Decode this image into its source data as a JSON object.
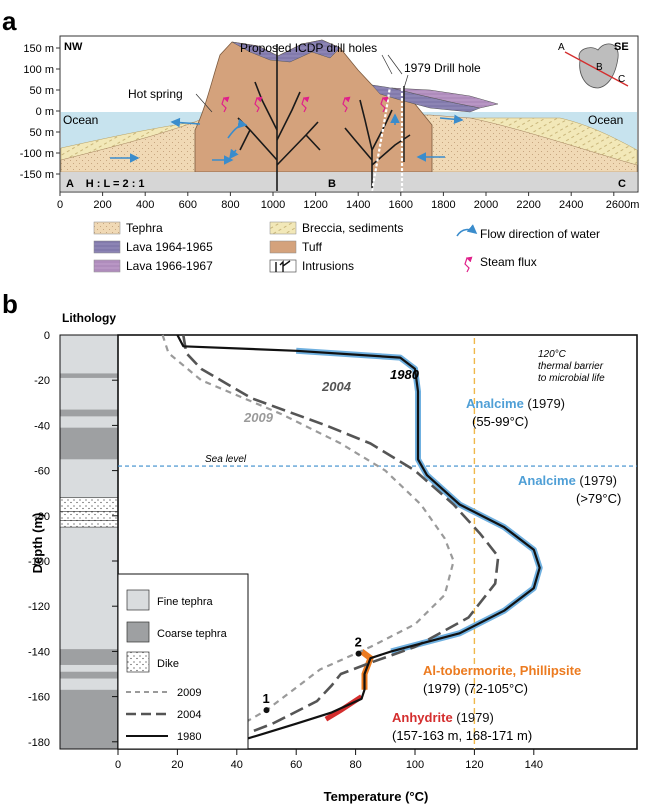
{
  "panel_a": {
    "letter": "a",
    "nw": "NW",
    "se": "SE",
    "proposed_label": "Proposed ICDP drill holes",
    "drill1979_label": "1979 Drill hole",
    "hot_spring_label": "Hot spring",
    "ocean_left": "Ocean",
    "ocean_right": "Ocean",
    "hl_label": "A    H : L = 2 : 1",
    "point_b": "B",
    "point_c": "C",
    "inset": {
      "a": "A",
      "b": "B",
      "c": "C"
    },
    "y_ticks": [
      "150 m",
      "100 m",
      "50 m",
      "0 m",
      "50 m",
      "-100 m",
      "-150 m"
    ],
    "x_ticks": [
      "0",
      "200",
      "400",
      "600",
      "800",
      "1000",
      "1200",
      "1400",
      "1600",
      "1800",
      "2000",
      "2200",
      "2400",
      "2600m"
    ],
    "legend": [
      {
        "label": "Tephra",
        "color": "#f0d9b5"
      },
      {
        "label": "Lava 1964-1965",
        "color": "#8c84b4"
      },
      {
        "label": "Lava 1966-1967",
        "color": "#b896c4"
      },
      {
        "label": "Breccia, sediments",
        "color": "#f2e8b8"
      },
      {
        "label": "Tuff",
        "color": "#d4a27c"
      },
      {
        "label": "Intrusions",
        "color": "#1a1a1a"
      },
      {
        "label": "Flow direction of water",
        "color": "#3a8ccc"
      },
      {
        "label": "Steam flux",
        "color": "#e0208a"
      }
    ]
  },
  "panel_b": {
    "letter": "b",
    "lithology_label": "Lithology",
    "ylabel": "Depth (m)",
    "xlabel": "Temperature (°C)",
    "y_ticks": [
      "0",
      "-20",
      "-40",
      "-60",
      "-80",
      "-100",
      "-120",
      "-140",
      "-160",
      "-180"
    ],
    "x_ticks": [
      "0",
      "20",
      "40",
      "60",
      "80",
      "100",
      "120",
      "140"
    ],
    "sea_level": "Sea level",
    "thermal_barrier": "120°C\nthermal barrier\nto microbial life",
    "curve_labels": {
      "c1980": "1980",
      "c2004": "2004",
      "c2009": "2009"
    },
    "point_1": "1",
    "point_2": "2",
    "minerals": [
      {
        "name": "Analcime",
        "suffix": " (1979)",
        "range": "(55-99°C)"
      },
      {
        "name": "Analcime",
        "suffix": " (1979)",
        "range": "(>79°C)"
      },
      {
        "name": "Al-tobermorite, Phillipsite",
        "suffix": "",
        "range": "(1979) (72-105°C)"
      },
      {
        "name": "Anhydrite",
        "suffix": " (1979)",
        "range": "(157-163 m, 168-171 m)"
      }
    ],
    "legend": {
      "fine": "Fine tephra",
      "coarse": "Coarse tephra",
      "dike": "Dike",
      "l2009": "2009",
      "l2004": "2004",
      "l1980": "1980"
    }
  },
  "chart_data": {
    "type": "line",
    "xlabel": "Temperature (°C)",
    "ylabel": "Depth (m)",
    "xlim": [
      0,
      148
    ],
    "ylim": [
      -183,
      0
    ],
    "series": [
      {
        "name": "1980",
        "style": "solid",
        "color": "#111111",
        "points": [
          [
            20,
            0
          ],
          [
            22,
            -5
          ],
          [
            60,
            -7
          ],
          [
            95,
            -10
          ],
          [
            100,
            -15
          ],
          [
            101,
            -25
          ],
          [
            101,
            -40
          ],
          [
            101,
            -55
          ],
          [
            104,
            -62
          ],
          [
            115,
            -75
          ],
          [
            130,
            -85
          ],
          [
            140,
            -95
          ],
          [
            142,
            -103
          ],
          [
            140,
            -112
          ],
          [
            130,
            -122
          ],
          [
            115,
            -132
          ],
          [
            92,
            -140
          ],
          [
            85,
            -143
          ],
          [
            83,
            -150
          ],
          [
            83,
            -157
          ],
          [
            82,
            -161
          ],
          [
            72,
            -167
          ],
          [
            60,
            -172
          ],
          [
            50,
            -176
          ],
          [
            40,
            -180
          ]
        ]
      },
      {
        "name": "2004",
        "style": "dashed",
        "color": "#555555",
        "points": [
          [
            22,
            0
          ],
          [
            23,
            -8
          ],
          [
            28,
            -15
          ],
          [
            45,
            -28
          ],
          [
            70,
            -40
          ],
          [
            85,
            -48
          ],
          [
            100,
            -60
          ],
          [
            113,
            -75
          ],
          [
            122,
            -88
          ],
          [
            128,
            -98
          ],
          [
            127,
            -110
          ],
          [
            118,
            -125
          ],
          [
            100,
            -138
          ],
          [
            85,
            -145
          ],
          [
            75,
            -150
          ],
          [
            72,
            -155
          ],
          [
            67,
            -162
          ],
          [
            58,
            -168
          ],
          [
            52,
            -172
          ],
          [
            40,
            -178
          ]
        ]
      },
      {
        "name": "2009",
        "style": "dashed",
        "color": "#9a9a9a",
        "points": [
          [
            15,
            0
          ],
          [
            17,
            -8
          ],
          [
            28,
            -20
          ],
          [
            55,
            -35
          ],
          [
            75,
            -48
          ],
          [
            90,
            -60
          ],
          [
            102,
            -75
          ],
          [
            110,
            -90
          ],
          [
            113,
            -100
          ],
          [
            110,
            -115
          ],
          [
            100,
            -128
          ],
          [
            85,
            -138
          ],
          [
            68,
            -148
          ],
          [
            58,
            -158
          ],
          [
            50,
            -166
          ],
          [
            42,
            -172
          ],
          [
            35,
            -177
          ]
        ]
      }
    ],
    "annotations": [
      {
        "text": "1",
        "x": 50,
        "y": -166
      },
      {
        "text": "2",
        "x": 81,
        "y": -141
      }
    ],
    "reference_lines": [
      {
        "label": "Sea level",
        "y": -58
      },
      {
        "label": "120°C thermal barrier to microbial life",
        "x": 120
      }
    ]
  }
}
